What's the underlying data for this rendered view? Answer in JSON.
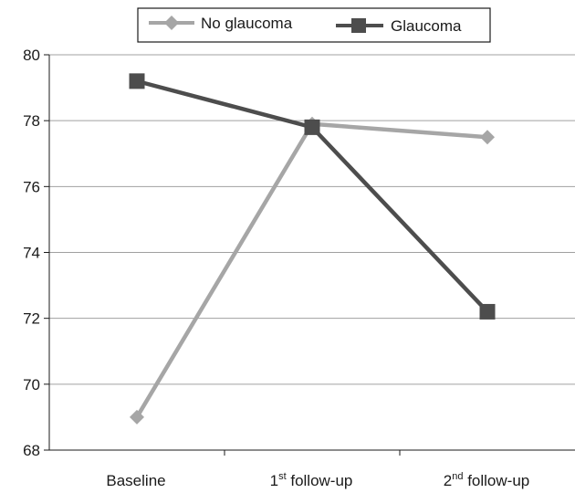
{
  "chart_data": {
    "type": "line",
    "title": "",
    "xlabel": "",
    "ylabel": "",
    "categories": [
      {
        "base": "Baseline",
        "sup": "",
        "rest": ""
      },
      {
        "base": "1",
        "sup": "st",
        "rest": " follow-up"
      },
      {
        "base": "2",
        "sup": "nd",
        "rest": " follow-up"
      }
    ],
    "ylim": [
      68,
      80
    ],
    "yticks": [
      68,
      70,
      72,
      74,
      76,
      78,
      80
    ],
    "grid": true,
    "legend_position": "top-center",
    "series": [
      {
        "name": "No glaucoma",
        "values": [
          69.0,
          77.9,
          77.5
        ],
        "color": "#a6a6a6",
        "marker": "diamond"
      },
      {
        "name": "Glaucoma",
        "values": [
          79.2,
          77.8,
          72.2
        ],
        "color": "#4d4d4d",
        "marker": "square"
      }
    ]
  }
}
